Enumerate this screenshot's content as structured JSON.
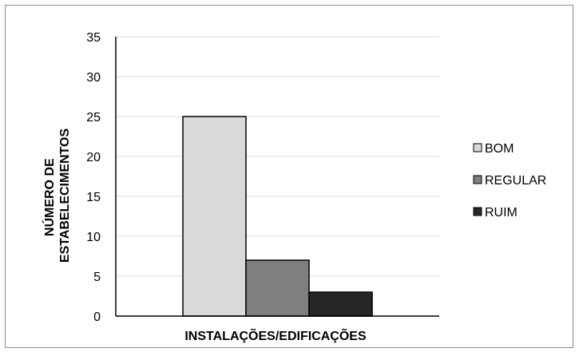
{
  "chart_data": {
    "type": "bar",
    "title": "",
    "xlabel": "INSTALAÇÕES/EDIFICAÇÕES",
    "ylabel": [
      "NÚMERO DE",
      "ESTABELECIMENTOS"
    ],
    "ylim": [
      0,
      35
    ],
    "yticks": [
      0,
      5,
      10,
      15,
      20,
      25,
      30,
      35
    ],
    "grid": true,
    "legend_position": "right",
    "categories": [
      "INSTALAÇÕES/EDIFICAÇÕES"
    ],
    "series": [
      {
        "name": "BOM",
        "values": [
          25
        ],
        "color": "#d9d9d9"
      },
      {
        "name": "REGULAR",
        "values": [
          7
        ],
        "color": "#7f7f7f"
      },
      {
        "name": "RUIM",
        "values": [
          3
        ],
        "color": "#262626"
      }
    ]
  }
}
